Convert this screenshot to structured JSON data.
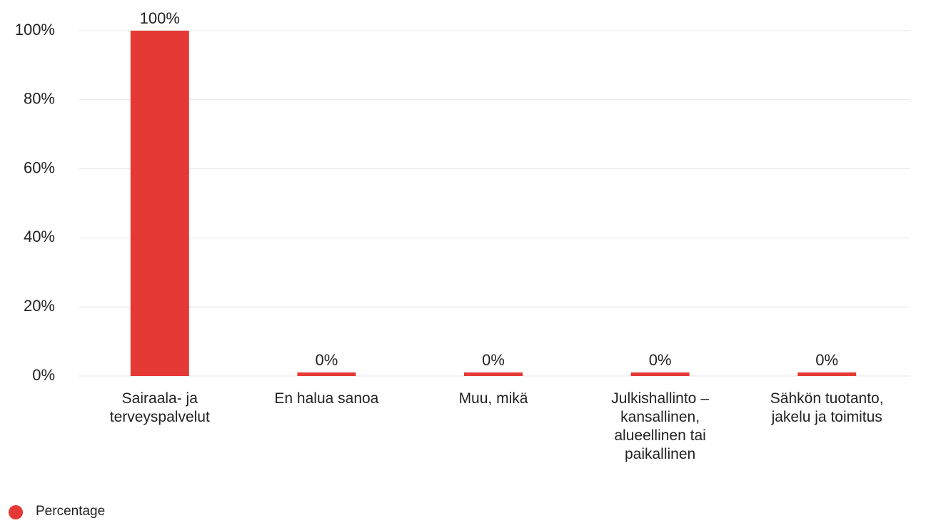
{
  "chart_data": {
    "type": "bar",
    "categories": [
      "Sairaala- ja terveyspalvelut",
      "En halua sanoa",
      "Muu, mikä",
      "Julkishallinto – kansallinen, alueellinen tai paikallinen",
      "Sähkön tuotanto, jakelu ja toimitus"
    ],
    "series": [
      {
        "name": "Percentage",
        "color": "#e53935",
        "values": [
          100,
          0,
          0,
          0,
          0
        ],
        "value_labels": [
          "100%",
          "0%",
          "0%",
          "0%",
          "0%"
        ]
      }
    ],
    "ylim": [
      0,
      100
    ],
    "yticks": [
      {
        "value": 0,
        "label": "0%"
      },
      {
        "value": 20,
        "label": "20%"
      },
      {
        "value": 40,
        "label": "40%"
      },
      {
        "value": 60,
        "label": "60%"
      },
      {
        "value": 80,
        "label": "80%"
      },
      {
        "value": 100,
        "label": "100%"
      }
    ],
    "grid": true,
    "legend": "bottom-left"
  }
}
